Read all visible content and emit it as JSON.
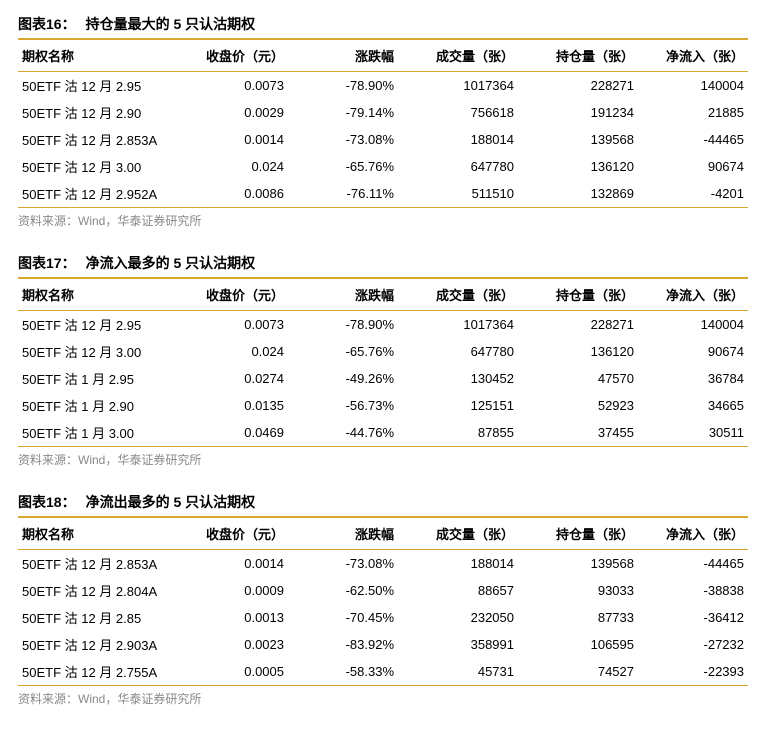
{
  "source_text": "资料来源：Wind，华泰证券研究所",
  "columns": [
    {
      "label": "期权名称",
      "key": "name"
    },
    {
      "label": "收盘价（元）",
      "key": "close"
    },
    {
      "label": "涨跌幅",
      "key": "chg"
    },
    {
      "label": "成交量（张）",
      "key": "vol"
    },
    {
      "label": "持仓量（张）",
      "key": "oi"
    },
    {
      "label": "净流入（张）",
      "key": "net"
    }
  ],
  "colors": {
    "accent": "#d9a62e",
    "text": "#000000",
    "muted": "#888888",
    "background": "#ffffff"
  },
  "tables": [
    {
      "number": "图表16：",
      "title": "持仓量最大的 5 只认沽期权",
      "rows": [
        {
          "name": "50ETF 沽 12 月 2.95",
          "close": "0.0073",
          "chg": "-78.90%",
          "vol": "1017364",
          "oi": "228271",
          "net": "140004"
        },
        {
          "name": "50ETF 沽 12 月 2.90",
          "close": "0.0029",
          "chg": "-79.14%",
          "vol": "756618",
          "oi": "191234",
          "net": "21885"
        },
        {
          "name": "50ETF 沽 12 月 2.853A",
          "close": "0.0014",
          "chg": "-73.08%",
          "vol": "188014",
          "oi": "139568",
          "net": "-44465"
        },
        {
          "name": "50ETF 沽 12 月 3.00",
          "close": "0.024",
          "chg": "-65.76%",
          "vol": "647780",
          "oi": "136120",
          "net": "90674"
        },
        {
          "name": "50ETF 沽 12 月 2.952A",
          "close": "0.0086",
          "chg": "-76.11%",
          "vol": "511510",
          "oi": "132869",
          "net": "-4201"
        }
      ]
    },
    {
      "number": "图表17：",
      "title": "净流入最多的 5 只认沽期权",
      "rows": [
        {
          "name": "50ETF 沽 12 月 2.95",
          "close": "0.0073",
          "chg": "-78.90%",
          "vol": "1017364",
          "oi": "228271",
          "net": "140004"
        },
        {
          "name": "50ETF 沽 12 月 3.00",
          "close": "0.024",
          "chg": "-65.76%",
          "vol": "647780",
          "oi": "136120",
          "net": "90674"
        },
        {
          "name": "50ETF 沽 1 月 2.95",
          "close": "0.0274",
          "chg": "-49.26%",
          "vol": "130452",
          "oi": "47570",
          "net": "36784"
        },
        {
          "name": "50ETF 沽 1 月 2.90",
          "close": "0.0135",
          "chg": "-56.73%",
          "vol": "125151",
          "oi": "52923",
          "net": "34665"
        },
        {
          "name": "50ETF 沽 1 月 3.00",
          "close": "0.0469",
          "chg": "-44.76%",
          "vol": "87855",
          "oi": "37455",
          "net": "30511"
        }
      ]
    },
    {
      "number": "图表18：",
      "title": "净流出最多的 5 只认沽期权",
      "rows": [
        {
          "name": "50ETF 沽 12 月 2.853A",
          "close": "0.0014",
          "chg": "-73.08%",
          "vol": "188014",
          "oi": "139568",
          "net": "-44465"
        },
        {
          "name": "50ETF 沽 12 月 2.804A",
          "close": "0.0009",
          "chg": "-62.50%",
          "vol": "88657",
          "oi": "93033",
          "net": "-38838"
        },
        {
          "name": "50ETF 沽 12 月 2.85",
          "close": "0.0013",
          "chg": "-70.45%",
          "vol": "232050",
          "oi": "87733",
          "net": "-36412"
        },
        {
          "name": "50ETF 沽 12 月 2.903A",
          "close": "0.0023",
          "chg": "-83.92%",
          "vol": "358991",
          "oi": "106595",
          "net": "-27232"
        },
        {
          "name": "50ETF 沽 12 月 2.755A",
          "close": "0.0005",
          "chg": "-58.33%",
          "vol": "45731",
          "oi": "74527",
          "net": "-22393"
        }
      ]
    }
  ]
}
